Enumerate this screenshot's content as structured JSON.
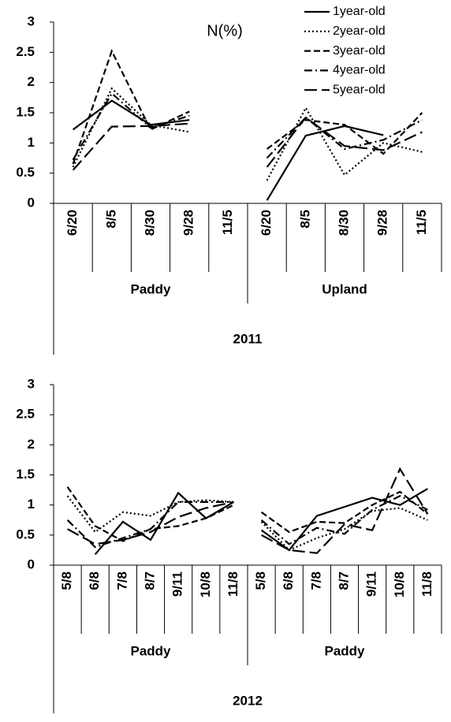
{
  "chart_data": [
    {
      "type": "line",
      "title": "N(%)",
      "categories": [
        "6/20",
        "8/5",
        "8/30",
        "9/28",
        "11/5",
        "6/20",
        "8/5",
        "8/30",
        "9/28",
        "11/5"
      ],
      "groups": [
        "Paddy",
        "Upland"
      ],
      "x_label": "2011",
      "ylim": [
        0,
        3
      ],
      "yticks": [
        0,
        0.5,
        1,
        1.5,
        2,
        2.5,
        3
      ],
      "legend": "top-right",
      "series": [
        {
          "name": "1year-old",
          "color": "#000000",
          "style": "solid",
          "values": [
            1.22,
            1.7,
            1.3,
            1.38,
            null,
            0.05,
            1.12,
            1.28,
            1.13,
            null
          ]
        },
        {
          "name": "2year-old",
          "color": "#000000",
          "style": "dotted",
          "values": [
            0.6,
            1.9,
            1.3,
            1.18,
            null,
            0.38,
            1.58,
            0.47,
            1.0,
            0.85
          ]
        },
        {
          "name": "3year-old",
          "color": "#000000",
          "style": "dashed",
          "values": [
            0.65,
            2.52,
            1.22,
            1.52,
            null,
            0.9,
            1.38,
            1.3,
            0.82,
            1.5
          ]
        },
        {
          "name": "4year-old",
          "color": "#000000",
          "style": "dash-dot",
          "values": [
            0.72,
            1.82,
            1.25,
            1.45,
            null,
            0.75,
            1.42,
            0.9,
            1.05,
            1.38
          ]
        },
        {
          "name": "5year-old",
          "color": "#000000",
          "style": "long-dash",
          "values": [
            0.55,
            1.27,
            1.28,
            1.32,
            null,
            0.6,
            1.42,
            0.95,
            0.88,
            1.18
          ]
        }
      ]
    },
    {
      "type": "line",
      "categories": [
        "5/8",
        "6/8",
        "7/8",
        "8/7",
        "9/11",
        "10/8",
        "11/8",
        "5/8",
        "6/8",
        "7/8",
        "8/7",
        "9/11",
        "10/8",
        "11/8"
      ],
      "groups": [
        "Paddy",
        "Paddy"
      ],
      "x_label": "2012",
      "ylim": [
        0,
        3
      ],
      "yticks": [
        0,
        0.5,
        1,
        1.5,
        2,
        2.5,
        3
      ],
      "series": [
        {
          "color": "#000000",
          "style": "solid",
          "values": [
            null,
            0.18,
            0.72,
            0.42,
            1.2,
            0.78,
            1.05,
            0.58,
            0.25,
            0.82,
            0.97,
            1.12,
            1.0,
            1.27
          ]
        },
        {
          "color": "#000000",
          "style": "dotted",
          "values": [
            1.15,
            0.55,
            0.88,
            0.82,
            1.05,
            1.08,
            1.05,
            0.72,
            0.25,
            0.45,
            0.6,
            0.9,
            0.95,
            0.75
          ]
        },
        {
          "color": "#000000",
          "style": "dashed",
          "values": [
            1.3,
            0.65,
            0.4,
            0.6,
            0.65,
            0.78,
            1.0,
            0.88,
            0.55,
            0.72,
            0.7,
            1.0,
            1.22,
            0.85
          ]
        },
        {
          "color": "#000000",
          "style": "dash-dot",
          "values": [
            0.75,
            0.3,
            0.45,
            0.6,
            1.05,
            1.05,
            1.05,
            0.75,
            0.35,
            0.62,
            0.52,
            0.92,
            1.15,
            0.92
          ]
        },
        {
          "color": "#000000",
          "style": "long-dash",
          "values": [
            0.6,
            0.35,
            0.42,
            0.55,
            0.8,
            0.95,
            1.05,
            0.5,
            0.25,
            0.2,
            0.68,
            0.58,
            1.6,
            0.85
          ]
        }
      ]
    }
  ]
}
